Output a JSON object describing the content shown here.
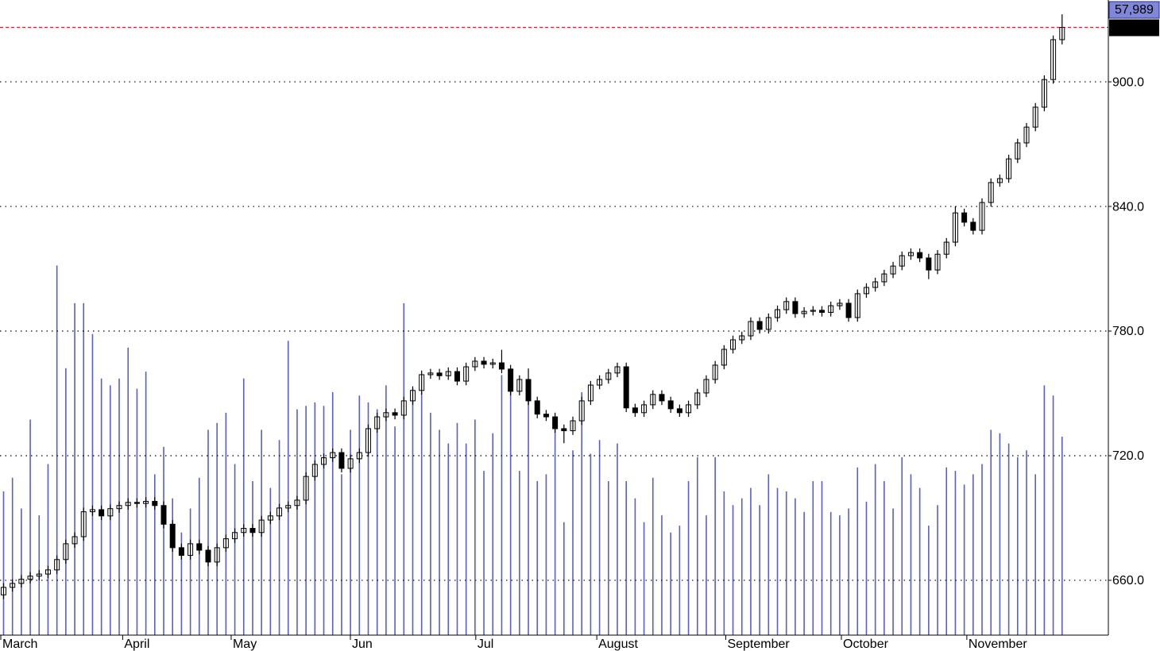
{
  "chart_data": {
    "type": "candlestick",
    "xlim": [
      -0.4,
      124.2
    ],
    "xticks": [
      {
        "value": -0.4,
        "label": "March"
      },
      {
        "value": 13.3,
        "label": "April"
      },
      {
        "value": 25.5,
        "label": "May"
      },
      {
        "value": 38.9,
        "label": "Jun"
      },
      {
        "value": 53.0,
        "label": "Jul"
      },
      {
        "value": 66.6,
        "label": "August"
      },
      {
        "value": 81.1,
        "label": "September"
      },
      {
        "value": 94.1,
        "label": "October"
      },
      {
        "value": 108.2,
        "label": "November"
      }
    ],
    "ylim": [
      633.6,
      939.4
    ],
    "yticks": [
      {
        "value": 660,
        "label": "660.0"
      },
      {
        "value": 720,
        "label": "720.0"
      },
      {
        "value": 780,
        "label": "780.0"
      },
      {
        "value": 840,
        "label": "840.0"
      },
      {
        "value": 900,
        "label": "900.0"
      }
    ],
    "grid": true,
    "vlim": [
      0,
      185600
    ],
    "up_color": "#ffffff",
    "down_color": "#000000",
    "volume_color": "#5a5fc4",
    "last_line_color": "#e02020",
    "open": [
      653.0,
      656.6,
      658.5,
      660.5,
      662.0,
      663.0,
      665.0,
      670.0,
      677.6,
      681.0,
      693.0,
      694.0,
      691.0,
      694.5,
      696.0,
      697.5,
      697.0,
      698.0,
      696.0,
      687.0,
      675.7,
      672.0,
      677.6,
      674.5,
      668.8,
      675.7,
      680.0,
      683.0,
      685.0,
      683.0,
      689.0,
      691.0,
      694.8,
      696.0,
      698.6,
      710.0,
      715.8,
      719.0,
      721.5,
      713.9,
      718.5,
      721.5,
      733.0,
      738.7,
      740.7,
      739.5,
      746.4,
      751.4,
      759.0,
      759.8,
      758.5,
      760.5,
      755.9,
      762.8,
      765.5,
      764.0,
      764.7,
      761.7,
      751.0,
      756.7,
      746.4,
      740.0,
      738.7,
      733.0,
      732.0,
      736.8,
      746.4,
      754.0,
      756.7,
      759.8,
      762.8,
      743.0,
      740.7,
      744.5,
      749.5,
      746.4,
      742.6,
      740.7,
      744.5,
      750.2,
      756.7,
      763.6,
      771.2,
      775.8,
      777.7,
      784.6,
      780.8,
      786.5,
      790.3,
      794.2,
      788.4,
      789.5,
      790.0,
      789.0,
      792.2,
      793.4,
      786.5,
      798.0,
      801.0,
      803.7,
      807.5,
      811.3,
      816.3,
      817.8,
      815.2,
      809.4,
      817.0,
      822.8,
      836.9,
      832.4,
      828.5,
      841.9,
      851.5,
      853.4,
      862.9,
      870.6,
      878.2,
      887.8,
      901.1,
      920.3
    ],
    "high": [
      658.6,
      660.5,
      662.5,
      664.0,
      665.0,
      667.0,
      672.0,
      679.6,
      683.0,
      695.0,
      696.0,
      696.0,
      696.5,
      698.0,
      699.5,
      699.5,
      700.0,
      700.0,
      698.0,
      689.0,
      677.7,
      679.6,
      679.6,
      676.5,
      677.7,
      682.0,
      685.0,
      687.0,
      687.0,
      691.0,
      693.0,
      696.8,
      698.0,
      700.6,
      712.0,
      717.8,
      721.0,
      723.5,
      723.5,
      720.5,
      723.5,
      735.0,
      740.7,
      742.7,
      742.7,
      748.4,
      753.4,
      761.0,
      761.8,
      761.8,
      762.5,
      762.5,
      764.8,
      767.5,
      767.5,
      766.7,
      771.0,
      763.7,
      758.7,
      762.0,
      748.4,
      742.0,
      740.7,
      735.0,
      738.8,
      748.4,
      756.0,
      758.7,
      761.8,
      764.8,
      764.8,
      745.0,
      746.5,
      751.5,
      751.5,
      748.4,
      744.6,
      746.5,
      752.2,
      758.7,
      765.6,
      773.2,
      777.8,
      779.7,
      786.6,
      786.6,
      788.5,
      792.3,
      796.2,
      796.2,
      791.5,
      792.0,
      792.0,
      794.2,
      795.4,
      795.4,
      800.0,
      803.0,
      805.7,
      809.5,
      813.3,
      818.3,
      819.8,
      819.8,
      817.2,
      819.0,
      824.8,
      840.0,
      838.9,
      834.4,
      843.9,
      853.5,
      855.4,
      864.9,
      872.6,
      880.2,
      889.8,
      903.1,
      922.3,
      932.5
    ],
    "low": [
      651.0,
      654.6,
      656.5,
      658.5,
      660.0,
      661.0,
      663.0,
      668.0,
      675.6,
      679.0,
      691.0,
      689.0,
      689.0,
      692.5,
      694.0,
      695.0,
      695.0,
      694.0,
      685.0,
      673.7,
      670.0,
      670.0,
      672.5,
      666.8,
      666.8,
      673.7,
      678.0,
      681.0,
      681.0,
      681.0,
      687.0,
      689.0,
      692.8,
      694.0,
      696.6,
      708.0,
      713.8,
      717.0,
      711.9,
      711.9,
      716.5,
      719.5,
      731.0,
      736.7,
      737.5,
      737.5,
      744.4,
      749.4,
      757.0,
      756.5,
      756.5,
      753.9,
      753.9,
      760.8,
      762.0,
      762.0,
      759.7,
      749.0,
      749.0,
      744.4,
      738.0,
      736.7,
      731.0,
      726.0,
      730.0,
      734.8,
      744.4,
      752.0,
      754.7,
      757.8,
      741.0,
      738.7,
      738.7,
      742.5,
      744.4,
      740.6,
      738.7,
      738.7,
      742.5,
      748.2,
      754.7,
      761.6,
      769.2,
      773.8,
      775.7,
      778.8,
      778.8,
      784.5,
      788.3,
      786.4,
      786.4,
      787.5,
      787.0,
      787.0,
      790.2,
      784.5,
      784.5,
      796.0,
      799.0,
      801.7,
      805.5,
      809.3,
      814.3,
      813.2,
      805.0,
      807.4,
      815.0,
      820.8,
      830.4,
      826.5,
      826.5,
      839.9,
      849.5,
      851.4,
      860.9,
      868.6,
      876.2,
      885.8,
      899.1,
      918.0
    ],
    "close": [
      656.6,
      658.5,
      660.5,
      662.0,
      663.0,
      665.0,
      670.0,
      677.6,
      681.0,
      693.0,
      694.0,
      691.0,
      694.5,
      696.0,
      697.5,
      697.0,
      698.0,
      696.0,
      687.0,
      675.7,
      672.0,
      677.6,
      674.5,
      668.8,
      675.7,
      680.0,
      683.0,
      685.0,
      683.0,
      689.0,
      691.0,
      694.8,
      696.0,
      698.6,
      710.0,
      715.8,
      719.0,
      721.5,
      713.9,
      718.5,
      721.5,
      733.0,
      738.7,
      740.7,
      739.5,
      746.4,
      751.4,
      759.0,
      759.8,
      758.5,
      760.5,
      755.9,
      762.8,
      765.5,
      764.0,
      764.7,
      761.7,
      751.0,
      756.7,
      746.4,
      740.0,
      738.7,
      733.0,
      732.0,
      736.8,
      746.4,
      754.0,
      756.7,
      759.8,
      762.8,
      743.0,
      740.7,
      744.5,
      749.5,
      746.4,
      742.6,
      740.7,
      744.5,
      750.2,
      756.7,
      763.6,
      771.2,
      775.8,
      777.7,
      784.6,
      780.8,
      786.5,
      790.3,
      794.2,
      788.4,
      789.5,
      790.0,
      789.0,
      792.2,
      793.4,
      786.5,
      798.0,
      801.0,
      803.7,
      807.5,
      811.3,
      816.3,
      817.8,
      815.2,
      809.4,
      817.0,
      822.8,
      836.9,
      832.4,
      828.5,
      841.9,
      851.5,
      853.4,
      862.9,
      870.6,
      878.2,
      887.8,
      901.1,
      920.3,
      926.21
    ],
    "volume": [
      42000,
      46000,
      37000,
      63000,
      35000,
      50000,
      108000,
      78000,
      97000,
      97000,
      88000,
      75000,
      73000,
      75000,
      84000,
      72000,
      77000,
      47000,
      55000,
      40000,
      30000,
      37000,
      46000,
      60000,
      62000,
      65000,
      50000,
      75000,
      45000,
      60000,
      43000,
      57000,
      86000,
      66000,
      67000,
      68000,
      67000,
      71000,
      47000,
      60000,
      70000,
      68000,
      66000,
      73000,
      61000,
      97000,
      72000,
      71000,
      65000,
      60000,
      56000,
      62000,
      56000,
      63000,
      48000,
      59000,
      76000,
      74000,
      48000,
      71000,
      45000,
      47000,
      60000,
      33000,
      54000,
      71000,
      53000,
      57000,
      45000,
      56000,
      45000,
      40000,
      33000,
      46000,
      35000,
      30000,
      32000,
      45000,
      52000,
      35000,
      52000,
      42000,
      38000,
      40000,
      43000,
      38000,
      47000,
      43000,
      42000,
      40000,
      36000,
      45000,
      45000,
      36000,
      35000,
      37000,
      49000,
      39000,
      50000,
      45000,
      37000,
      52000,
      47000,
      43000,
      32000,
      38000,
      49000,
      48000,
      44000,
      47000,
      50000,
      60000,
      59000,
      56000,
      52000,
      54000,
      47000,
      73000,
      70000,
      57989
    ],
    "volume_labels": [
      null,
      null,
      null,
      null,
      null,
      null,
      null,
      null,
      null,
      null,
      null,
      null,
      null,
      null,
      null,
      null,
      null,
      null,
      null,
      null,
      null,
      null,
      null,
      null,
      null,
      null,
      null,
      null,
      null,
      null,
      null,
      null,
      null,
      null,
      null,
      null,
      null,
      null,
      null,
      null,
      null,
      null,
      null,
      null,
      null,
      null,
      null,
      null,
      null,
      null,
      null,
      null,
      null,
      null,
      null,
      null,
      null,
      null,
      null,
      null,
      null,
      null,
      null,
      null,
      null,
      null,
      null,
      null,
      null,
      null,
      null,
      null,
      null,
      null,
      null,
      null,
      null,
      null,
      null,
      null,
      null,
      null,
      null,
      null,
      null,
      null,
      null,
      null,
      null,
      null,
      null,
      null,
      null,
      null,
      null,
      null,
      null,
      null,
      null,
      null,
      null,
      null,
      null,
      null,
      null,
      null,
      null,
      null,
      null,
      null,
      null,
      null,
      null,
      null,
      null,
      null,
      null,
      null,
      null,
      "57,989"
    ]
  }
}
